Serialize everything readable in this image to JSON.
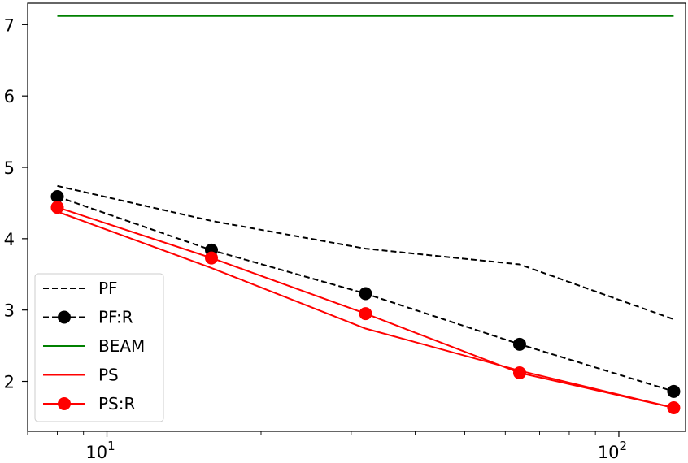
{
  "chart_data": {
    "type": "line",
    "title": "",
    "xlabel": "",
    "ylabel": "",
    "xscale": "log",
    "xlim": [
      7.0,
      135
    ],
    "ylim": [
      1.3,
      7.3
    ],
    "grid": false,
    "legend_position": "lower-left",
    "x": [
      8,
      16,
      32,
      64,
      128
    ],
    "x_tick_labels": [
      {
        "value": 10,
        "base": "10",
        "exp": "1"
      },
      {
        "value": 100,
        "base": "10",
        "exp": "2"
      }
    ],
    "y_ticks": [
      2,
      3,
      4,
      5,
      6,
      7
    ],
    "y_tick_labels": [
      "2",
      "3",
      "4",
      "5",
      "6",
      "7"
    ],
    "series": [
      {
        "name": "PF",
        "style": "dashed",
        "marker": "none",
        "color": "#000000",
        "values": [
          4.74,
          4.25,
          3.86,
          3.64,
          2.87
        ]
      },
      {
        "name": "PF:R",
        "style": "dashed",
        "marker": "circle",
        "color": "#000000",
        "values": [
          4.59,
          3.84,
          3.23,
          2.52,
          1.86
        ]
      },
      {
        "name": "BEAM",
        "style": "solid",
        "marker": "none",
        "color": "#008000",
        "values": [
          7.12,
          7.12,
          7.12,
          7.12,
          7.12
        ]
      },
      {
        "name": "PS",
        "style": "solid",
        "marker": "none",
        "color": "#ff0000",
        "values": [
          4.38,
          3.59,
          2.74,
          2.15,
          1.63
        ]
      },
      {
        "name": "PS:R",
        "style": "solid",
        "marker": "circle",
        "color": "#ff0000",
        "values": [
          4.44,
          3.73,
          2.95,
          2.12,
          1.63
        ]
      }
    ]
  }
}
